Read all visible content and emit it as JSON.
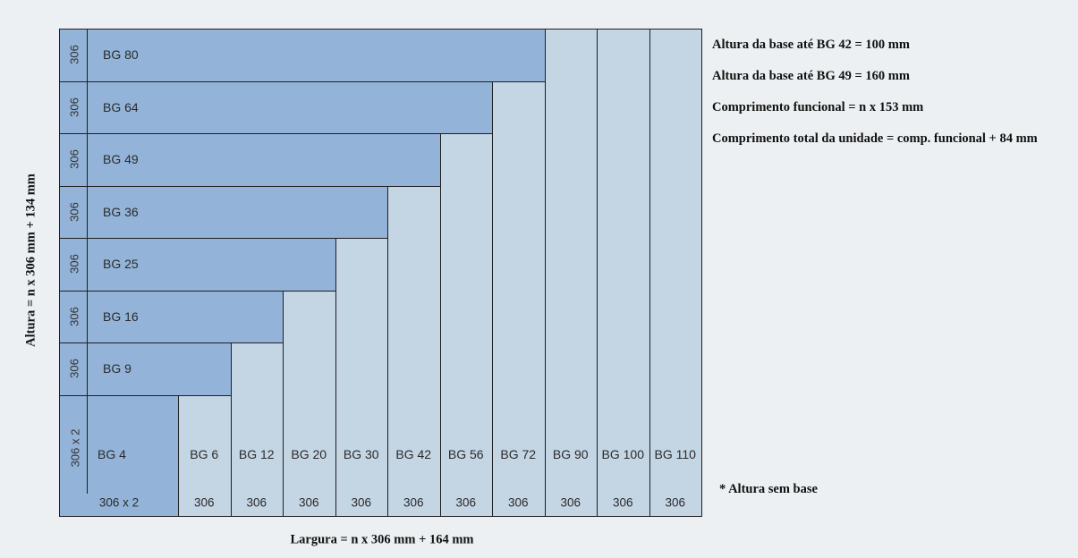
{
  "left_rows": [
    {
      "name": "BG 80",
      "height": "306"
    },
    {
      "name": "BG 64",
      "height": "306"
    },
    {
      "name": "BG 49",
      "height": "306"
    },
    {
      "name": "BG 36",
      "height": "306"
    },
    {
      "name": "BG 25",
      "height": "306"
    },
    {
      "name": "BG 16",
      "height": "306"
    },
    {
      "name": "BG 9",
      "height": "306"
    }
  ],
  "base_cell": {
    "name": "BG 4",
    "height": "306 x 2",
    "width": "306 x 2"
  },
  "columns": [
    {
      "name": "BG 6",
      "width": "306"
    },
    {
      "name": "BG 12",
      "width": "306"
    },
    {
      "name": "BG 20",
      "width": "306"
    },
    {
      "name": "BG 30",
      "width": "306"
    },
    {
      "name": "BG 42",
      "width": "306"
    },
    {
      "name": "BG 56",
      "width": "306"
    },
    {
      "name": "BG 72",
      "width": "306"
    },
    {
      "name": "BG 90",
      "width": "306"
    },
    {
      "name": "BG 100",
      "width": "306"
    },
    {
      "name": "BG 110",
      "width": "306"
    }
  ],
  "notes": [
    "Altura da base até BG 42 = 100 mm",
    "Altura da base até BG 49 = 160 mm",
    "Comprimento funcional = n x 153 mm",
    "Comprimento total da unidade = comp. funcional + 84 mm"
  ],
  "footnote": "* Altura sem base",
  "width_label": "Largura = n x 306 mm + 164 mm",
  "height_label": "Altura = n x 306 mm + 134 mm",
  "colors": {
    "dark_cell": "#93b4d8",
    "light_cell": "#c4d5e4",
    "background": "#edf0f2",
    "border": "#1f1f1f"
  }
}
